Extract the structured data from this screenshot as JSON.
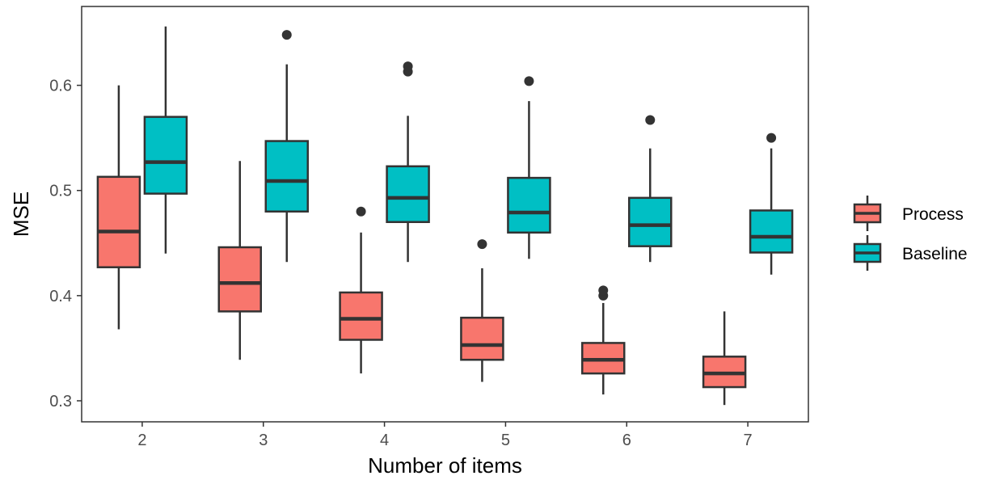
{
  "chart_data": {
    "type": "boxplot",
    "xlabel": "Number of items",
    "ylabel": "MSE",
    "categories": [
      "2",
      "3",
      "4",
      "5",
      "6",
      "7"
    ],
    "ylim": [
      0.28,
      0.675
    ],
    "yticks": [
      0.3,
      0.4,
      0.5,
      0.6
    ],
    "ytick_labels": [
      "0.3",
      "0.4",
      "0.5",
      "0.6"
    ],
    "grid": false,
    "legend_position": "right",
    "series": [
      {
        "name": "Process",
        "color": "#F8766D",
        "boxes": [
          {
            "category": "2",
            "whisker_low": 0.368,
            "q1": 0.427,
            "median": 0.461,
            "q3": 0.513,
            "whisker_high": 0.6,
            "outliers": []
          },
          {
            "category": "3",
            "whisker_low": 0.339,
            "q1": 0.385,
            "median": 0.412,
            "q3": 0.446,
            "whisker_high": 0.528,
            "outliers": []
          },
          {
            "category": "4",
            "whisker_low": 0.326,
            "q1": 0.358,
            "median": 0.378,
            "q3": 0.403,
            "whisker_high": 0.46,
            "outliers": [
              0.48
            ]
          },
          {
            "category": "5",
            "whisker_low": 0.318,
            "q1": 0.339,
            "median": 0.353,
            "q3": 0.379,
            "whisker_high": 0.426,
            "outliers": [
              0.449
            ]
          },
          {
            "category": "6",
            "whisker_low": 0.306,
            "q1": 0.326,
            "median": 0.339,
            "q3": 0.355,
            "whisker_high": 0.393,
            "outliers": [
              0.4,
              0.405
            ]
          },
          {
            "category": "7",
            "whisker_low": 0.296,
            "q1": 0.313,
            "median": 0.326,
            "q3": 0.342,
            "whisker_high": 0.385,
            "outliers": []
          }
        ]
      },
      {
        "name": "Baseline",
        "color": "#00BFC4",
        "boxes": [
          {
            "category": "2",
            "whisker_low": 0.44,
            "q1": 0.497,
            "median": 0.527,
            "q3": 0.57,
            "whisker_high": 0.656,
            "outliers": []
          },
          {
            "category": "3",
            "whisker_low": 0.432,
            "q1": 0.48,
            "median": 0.509,
            "q3": 0.547,
            "whisker_high": 0.62,
            "outliers": [
              0.648
            ]
          },
          {
            "category": "4",
            "whisker_low": 0.432,
            "q1": 0.47,
            "median": 0.493,
            "q3": 0.523,
            "whisker_high": 0.571,
            "outliers": [
              0.613,
              0.618
            ]
          },
          {
            "category": "5",
            "whisker_low": 0.435,
            "q1": 0.46,
            "median": 0.479,
            "q3": 0.512,
            "whisker_high": 0.585,
            "outliers": [
              0.604
            ]
          },
          {
            "category": "6",
            "whisker_low": 0.432,
            "q1": 0.447,
            "median": 0.467,
            "q3": 0.493,
            "whisker_high": 0.54,
            "outliers": [
              0.567
            ]
          },
          {
            "category": "7",
            "whisker_low": 0.42,
            "q1": 0.441,
            "median": 0.456,
            "q3": 0.481,
            "whisker_high": 0.54,
            "outliers": [
              0.55
            ]
          }
        ]
      }
    ]
  }
}
